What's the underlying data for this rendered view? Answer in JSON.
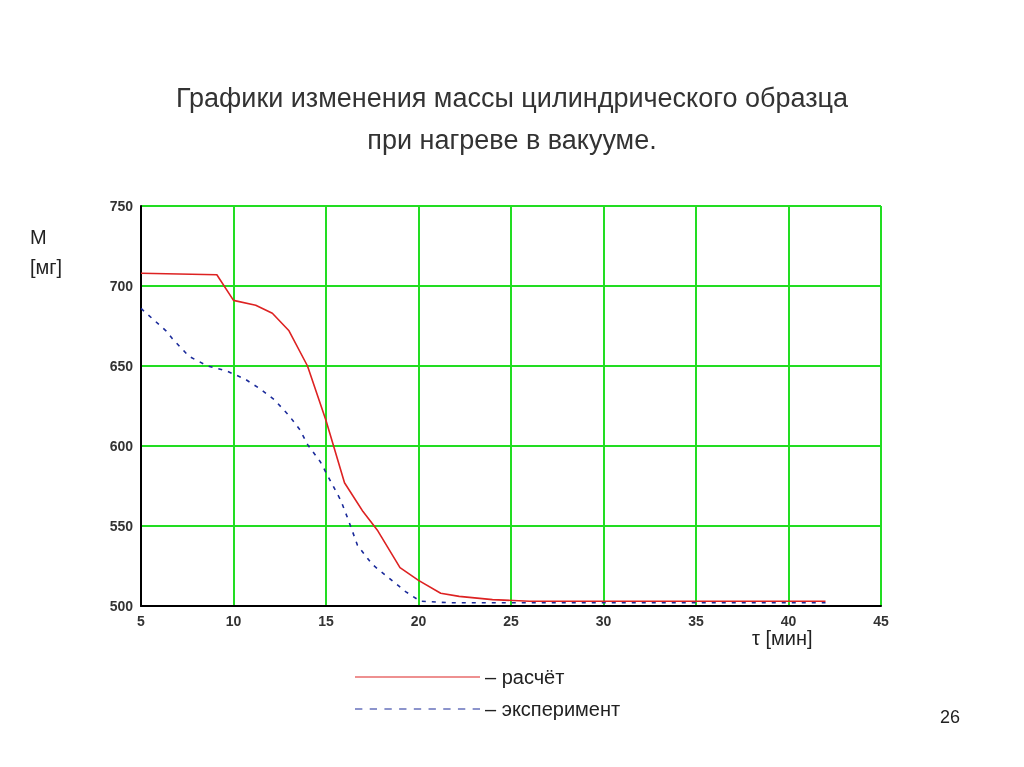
{
  "chart_data": {
    "type": "line",
    "title": "Графики изменения массы цилиндрического образца\nпри нагреве в вакууме.",
    "xlabel": "τ [мин]",
    "ylabel": "M\n[мг]",
    "annotations": [
      "26"
    ],
    "xlim": [
      5,
      45
    ],
    "xticks": [
      5,
      10,
      15,
      20,
      25,
      30,
      35,
      40,
      45
    ],
    "ylim": [
      500,
      750
    ],
    "yticks": [
      500,
      550,
      600,
      650,
      700,
      750
    ],
    "grid": true,
    "legend": "bottom",
    "marker": "none",
    "series": [
      {
        "name": "– расчёт",
        "color": "#dd2222",
        "line_style": "solid",
        "x": [
          5,
          9.1,
          10,
          11.2,
          12.1,
          13,
          14,
          15,
          16,
          17,
          17.8,
          19,
          20,
          21.2,
          22.2,
          24,
          26,
          42
        ],
        "values": [
          708,
          707,
          691,
          688,
          683,
          672,
          650,
          616,
          577,
          559,
          547,
          524,
          516,
          508,
          506,
          504,
          503,
          503
        ]
      },
      {
        "name": "– эксперимент",
        "color": "#1a2a9a",
        "line_style": "dashed",
        "x": [
          5,
          6.35,
          6.7,
          7.6,
          8.6,
          9.6,
          10.6,
          11.4,
          12.2,
          13,
          13.6,
          14,
          14.7,
          15.2,
          15.8,
          16.2,
          16.7,
          17.5,
          19.3,
          20.1,
          21.7,
          42
        ],
        "values": [
          686,
          672,
          667,
          656,
          650,
          647,
          642,
          636,
          629,
          619,
          610,
          601,
          590,
          579,
          566,
          554,
          538,
          526,
          509,
          503,
          502,
          502
        ]
      }
    ]
  }
}
